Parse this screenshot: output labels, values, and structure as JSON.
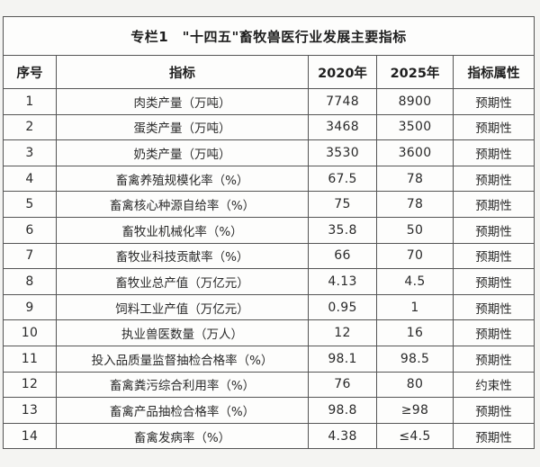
{
  "table": {
    "title": "专栏1　\"十四五\"畜牧兽医行业发展主要指标",
    "headers": [
      "序号",
      "指标",
      "2020年",
      "2025年",
      "指标属性"
    ],
    "rows": [
      [
        "1",
        "肉类产量（万吨）",
        "7748",
        "8900",
        "预期性"
      ],
      [
        "2",
        "蛋类产量（万吨）",
        "3468",
        "3500",
        "预期性"
      ],
      [
        "3",
        "奶类产量（万吨）",
        "3530",
        "3600",
        "预期性"
      ],
      [
        "4",
        "畜禽养殖规模化率（%）",
        "67.5",
        "78",
        "预期性"
      ],
      [
        "5",
        "畜禽核心种源自给率（%）",
        "75",
        "78",
        "预期性"
      ],
      [
        "6",
        "畜牧业机械化率（%）",
        "35.8",
        "50",
        "预期性"
      ],
      [
        "7",
        "畜牧业科技贡献率（%）",
        "66",
        "70",
        "预期性"
      ],
      [
        "8",
        "畜牧业总产值（万亿元）",
        "4.13",
        "4.5",
        "预期性"
      ],
      [
        "9",
        "饲料工业产值（万亿元）",
        "0.95",
        "1",
        "预期性"
      ],
      [
        "10",
        "执业兽医数量（万人）",
        "12",
        "16",
        "预期性"
      ],
      [
        "11",
        "投入品质量监督抽检合格率（%）",
        "98.1",
        "98.5",
        "预期性"
      ],
      [
        "12",
        "畜禽粪污综合利用率（%）",
        "76",
        "80",
        "约束性"
      ],
      [
        "13",
        "畜禽产品抽检合格率（%）",
        "98.8",
        "≥98",
        "预期性"
      ],
      [
        "14",
        "畜禽发病率（%）",
        "4.38",
        "≤4.5",
        "预期性"
      ]
    ],
    "colors": {
      "page_background": "#f4f4f2",
      "table_background": "#fdfdfc",
      "border": "#555555",
      "text": "#262626"
    }
  }
}
